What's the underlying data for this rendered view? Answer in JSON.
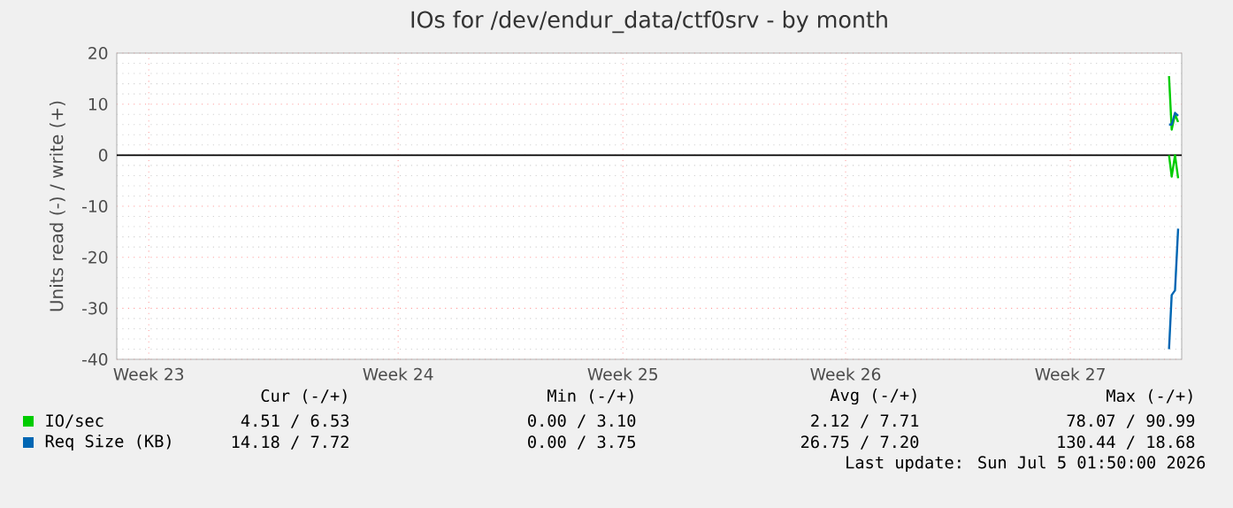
{
  "chart_data": {
    "type": "line",
    "title": "IOs for /dev/endur_data/ctf0srv - by month",
    "ylabel": "Units read (-) / write (+)",
    "xlim": [
      "2026-06-01T22:00",
      "2026-07-05T04:30"
    ],
    "xticks": [
      {
        "value": "2026-06-02T22:00",
        "label": "Week 23"
      },
      {
        "value": "2026-06-10T17:00",
        "label": "Week 24"
      },
      {
        "value": "2026-06-17T17:30",
        "label": "Week 25"
      },
      {
        "value": "2026-06-24T16:30",
        "label": "Week 26"
      },
      {
        "value": "2026-07-01T17:00",
        "label": "Week 27"
      }
    ],
    "ylim": [
      -40,
      20
    ],
    "yticks": [
      -40,
      -30,
      -20,
      -10,
      0,
      10,
      20
    ],
    "grid": true,
    "legend": "bottom",
    "line_style": "solid",
    "ref_lines": [
      {
        "axis": "y",
        "value": 0,
        "color": "#000000"
      }
    ],
    "series": [
      {
        "name": "IO/sec",
        "color": "#00cc00",
        "x": [
          "2026-07-04T19:00",
          "2026-07-04T21:00",
          "2026-07-04T23:30",
          "2026-07-05T01:50"
        ],
        "values": [
          15.5,
          5,
          8,
          6.5
        ]
      },
      {
        "color": "#00cc00",
        "x": [
          "2026-07-04T19:00",
          "2026-07-04T21:00",
          "2026-07-04T23:30",
          "2026-07-05T01:50"
        ],
        "values": [
          0,
          -4.2,
          0,
          -4.5
        ]
      },
      {
        "name": "Req Size (KB)",
        "color": "#0066b3",
        "x": [
          "2026-07-04T19:00",
          "2026-07-04T21:00",
          "2026-07-04T23:30",
          "2026-07-05T01:50"
        ],
        "values": [
          6,
          6,
          8.3,
          7.7
        ]
      },
      {
        "color": "#0066b3",
        "x": [
          "2026-07-04T19:00",
          "2026-07-04T21:00",
          "2026-07-04T23:30",
          "2026-07-05T01:50"
        ],
        "values": [
          -38,
          -27.4,
          -26.5,
          -14.4
        ]
      }
    ],
    "annotations": [
      "Cur (-/+)",
      "Min (-/+)",
      "Avg (-/+)",
      "Max (-/+)",
      "4.51 /      6.53",
      "0.00 /      3.10",
      "2.12 /      7.71",
      "78.07 /     90.99",
      "14.18 /      7.72",
      "0.00 /      3.75",
      "26.75 /      7.20",
      "130.44 /     18.68",
      "Last update: Sun Jul  5 01:50:00 2026"
    ]
  }
}
